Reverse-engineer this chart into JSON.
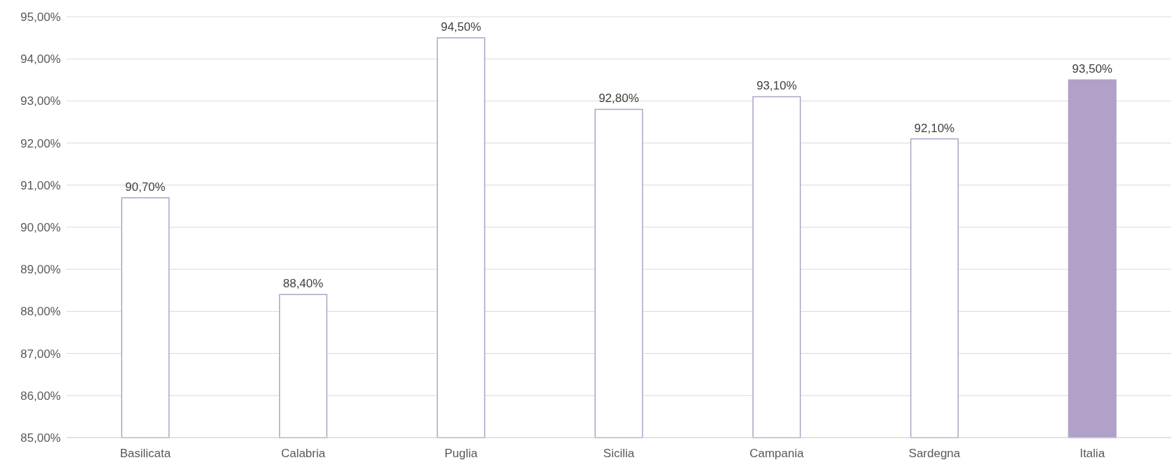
{
  "chart_data": {
    "type": "bar",
    "categories": [
      "Basilicata",
      "Calabria",
      "Puglia",
      "Sicilia",
      "Campania",
      "Sardegna",
      "Italia"
    ],
    "values": [
      90.7,
      88.4,
      94.5,
      92.8,
      93.1,
      92.1,
      93.5
    ],
    "value_labels": [
      "90,70%",
      "88,40%",
      "94,50%",
      "92,80%",
      "93,10%",
      "92,10%",
      "93,50%"
    ],
    "color": "#b1a0c7",
    "colors": [
      "#ffffff",
      "#ffffff",
      "#ffffff",
      "#ffffff",
      "#ffffff",
      "#ffffff",
      "#b1a0c7"
    ],
    "ylim": [
      85,
      95
    ],
    "yticks": [
      {
        "value": 85,
        "label": "85,00%"
      },
      {
        "value": 86,
        "label": "86,00%"
      },
      {
        "value": 87,
        "label": "87,00%"
      },
      {
        "value": 88,
        "label": "88,00%"
      },
      {
        "value": 89,
        "label": "89,00%"
      },
      {
        "value": 90,
        "label": "90,00%"
      },
      {
        "value": 91,
        "label": "91,00%"
      },
      {
        "value": 92,
        "label": "92,00%"
      },
      {
        "value": 93,
        "label": "93,00%"
      },
      {
        "value": 94,
        "label": "94,00%"
      },
      {
        "value": 95,
        "label": "95,00%"
      }
    ],
    "grid": "y"
  }
}
